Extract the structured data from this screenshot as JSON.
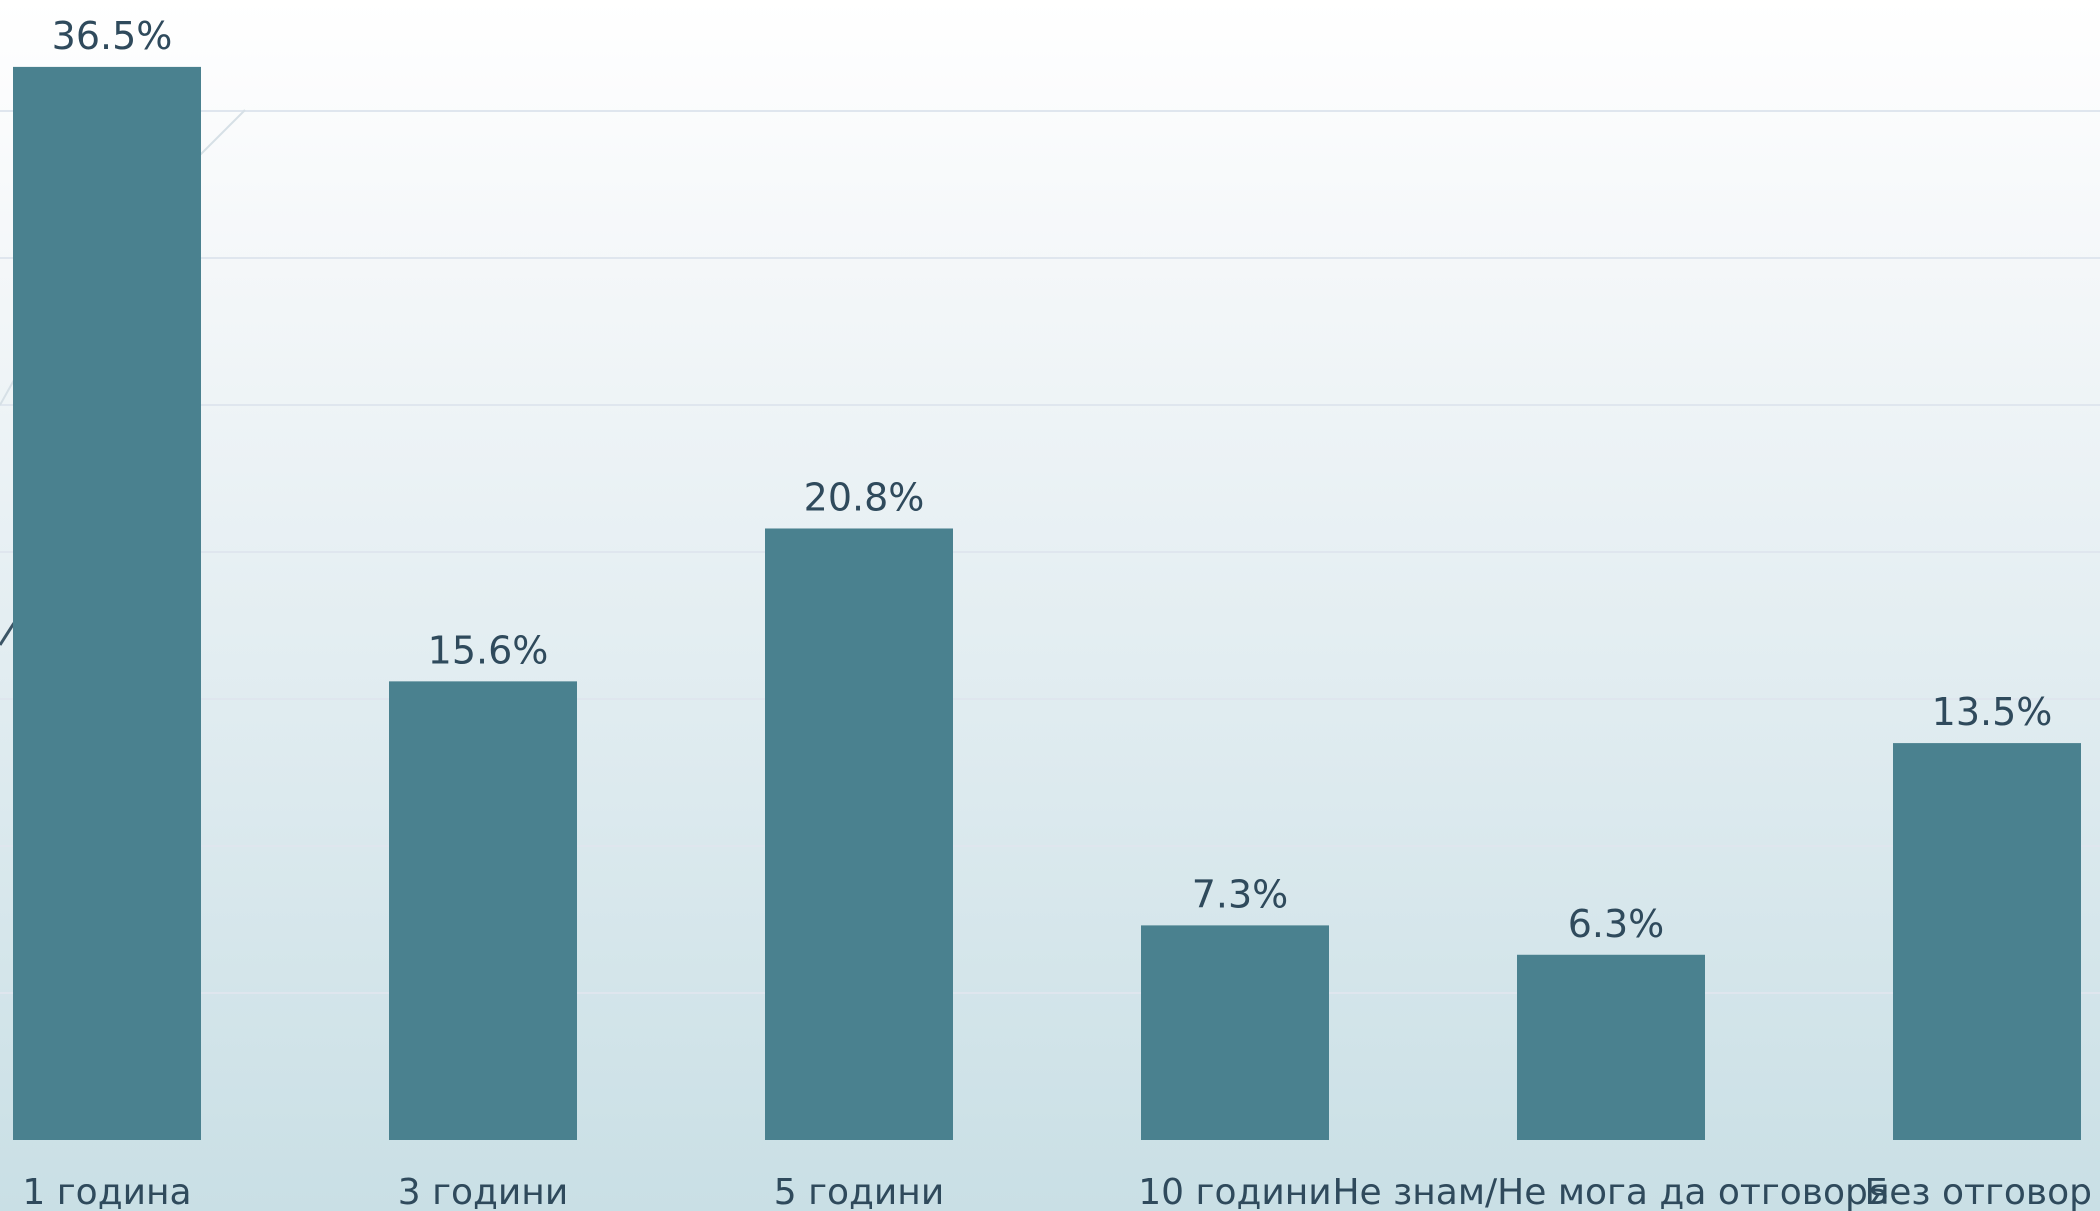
{
  "chart_data": {
    "type": "bar",
    "title": "",
    "xlabel": "",
    "ylabel": "",
    "categories": [
      "1 година",
      "3 години",
      "5 години",
      "10 години",
      "Не знам/Не мога да отговоря",
      "Без отговор"
    ],
    "values": [
      36.5,
      15.6,
      20.8,
      7.3,
      6.3,
      13.5
    ],
    "value_labels": [
      "36.5%",
      "15.6%",
      "20.8%",
      "7.3%",
      "6.3%",
      "13.5%"
    ],
    "ylim": [
      0,
      40
    ],
    "grid": true,
    "legend": "none",
    "bar_color": "#4a818f"
  }
}
